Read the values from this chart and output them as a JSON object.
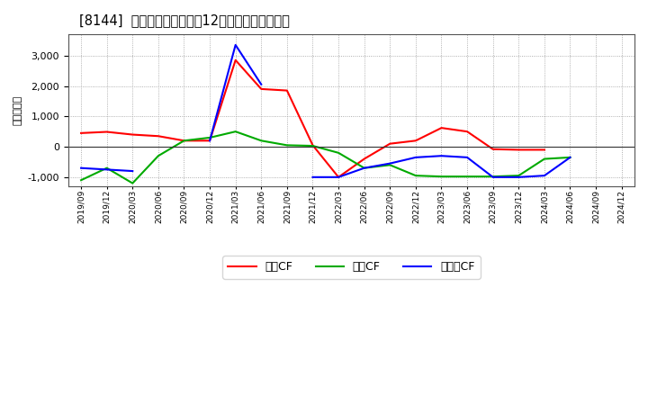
{
  "title": "[8144]  キャッシュフローの12か月移動合計の推移",
  "ylabel": "（百万円）",
  "background_color": "#ffffff",
  "plot_bg_color": "#ffffff",
  "grid_color": "#999999",
  "x_labels": [
    "2019/09",
    "2019/12",
    "2020/03",
    "2020/06",
    "2020/09",
    "2020/12",
    "2021/03",
    "2021/06",
    "2021/09",
    "2021/12",
    "2022/03",
    "2022/06",
    "2022/09",
    "2022/12",
    "2023/03",
    "2023/06",
    "2023/09",
    "2023/12",
    "2024/03",
    "2024/06",
    "2024/09",
    "2024/12"
  ],
  "operating_cf": [
    450,
    490,
    400,
    350,
    200,
    200,
    2850,
    1900,
    1850,
    50,
    -1000,
    -400,
    100,
    200,
    620,
    500,
    -80,
    -100,
    -100,
    null,
    null,
    null
  ],
  "investing_cf": [
    -1100,
    -700,
    -1200,
    -300,
    200,
    300,
    500,
    200,
    50,
    30,
    -200,
    -700,
    -600,
    -950,
    -980,
    -980,
    -980,
    -950,
    -400,
    -350,
    null,
    null
  ],
  "free_cf": [
    -700,
    -750,
    -800,
    null,
    null,
    200,
    3350,
    2050,
    null,
    -1000,
    -1000,
    -700,
    -550,
    -350,
    -300,
    -350,
    -1000,
    -1000,
    -950,
    -350,
    null,
    null
  ],
  "operating_color": "#ff0000",
  "investing_color": "#00aa00",
  "free_color": "#0000ff",
  "ylim": [
    -1300,
    3700
  ],
  "yticks": [
    -1000,
    0,
    1000,
    2000,
    3000
  ],
  "legend_labels": [
    "営業CF",
    "投資CF",
    "フリーCF"
  ]
}
